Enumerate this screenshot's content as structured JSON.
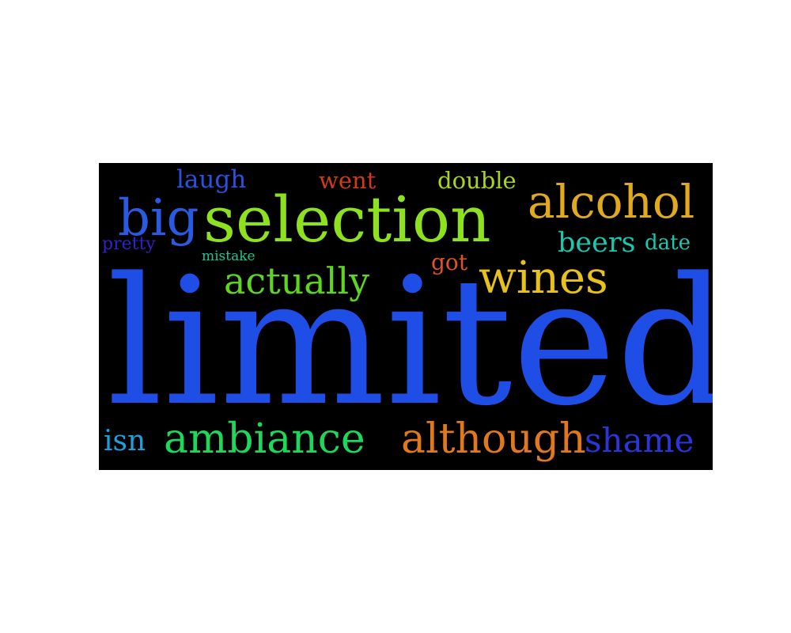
{
  "words": [
    {
      "text": "limited",
      "color": "#1f4ee6"
    },
    {
      "text": "selection",
      "color": "#8ee11e"
    },
    {
      "text": "alcohol",
      "color": "#e0a91e"
    },
    {
      "text": "big",
      "color": "#2a5ae0"
    },
    {
      "text": "actually",
      "color": "#5ed51e"
    },
    {
      "text": "wines",
      "color": "#e8c21a"
    },
    {
      "text": "beers",
      "color": "#19c8b0"
    },
    {
      "text": "date",
      "color": "#19c8b0"
    },
    {
      "text": "ambiance",
      "color": "#1ed85a"
    },
    {
      "text": "although",
      "color": "#e0781e"
    },
    {
      "text": "shame",
      "color": "#2a36d8"
    },
    {
      "text": "isn",
      "color": "#1aa2e0"
    },
    {
      "text": "laugh",
      "color": "#2a52e0"
    },
    {
      "text": "went",
      "color": "#d23a1a"
    },
    {
      "text": "double",
      "color": "#a8d61e"
    },
    {
      "text": "pretty",
      "color": "#3220c8"
    },
    {
      "text": "mistake",
      "color": "#19c896"
    },
    {
      "text": "got",
      "color": "#e0551e"
    }
  ]
}
